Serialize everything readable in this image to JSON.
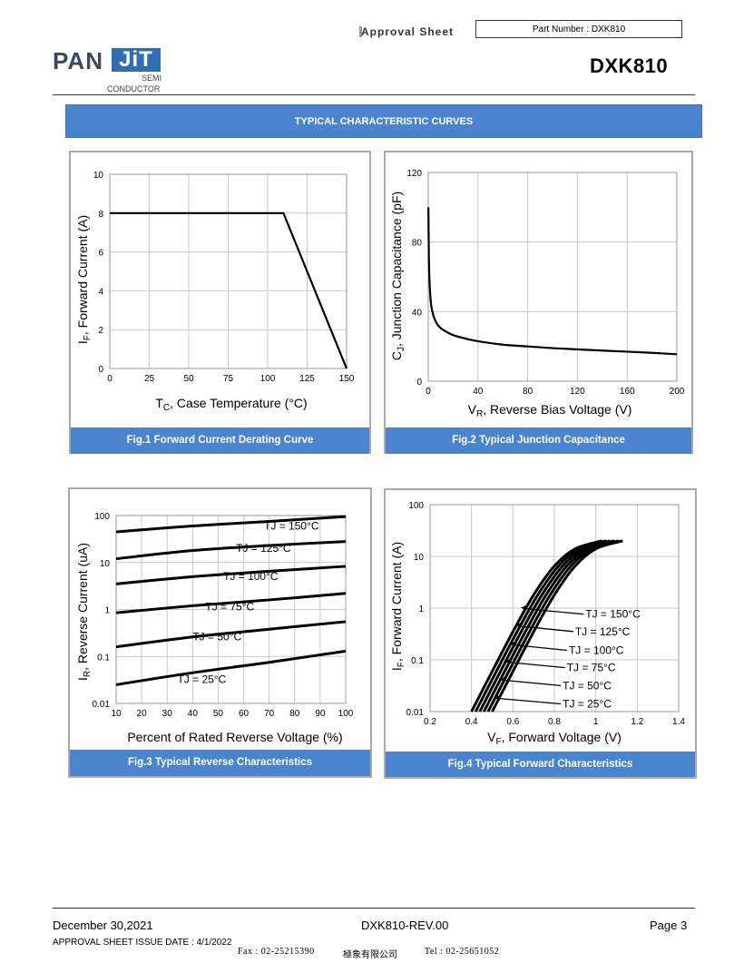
{
  "header": {
    "logo_pan": "PAN",
    "logo_jit": "JiT",
    "logo_semi": "SEMI",
    "logo_conductor": "CONDUCTOR",
    "approval": "Approval Sheet",
    "part_number": "Part Number : DXK810",
    "title": "DXK810"
  },
  "section_title": "TYPICAL CHARACTERISTIC CURVES",
  "colors": {
    "banner": "#4a84cf",
    "grid": "#c8c8c8",
    "curve": "#000000"
  },
  "figures": [
    {
      "caption": "Fig.1 Forward Current Derating Curve",
      "xlabel_main": "T",
      "xlabel_sub": "C",
      "xlabel_rest": ", Case Temperature (°C)",
      "ylabel_main": "I",
      "ylabel_sub": "F",
      "ylabel_rest": ", Forward Current (A)",
      "xticks": [
        "0",
        "25",
        "50",
        "75",
        "100",
        "125",
        "150"
      ],
      "yticks": [
        "0",
        "2",
        "4",
        "6",
        "8",
        "10"
      ]
    },
    {
      "caption": "Fig.2 Typical Junction Capacitance",
      "xlabel_main": "V",
      "xlabel_sub": "R",
      "xlabel_rest": ", Reverse Bias Voltage (V)",
      "ylabel_main": "C",
      "ylabel_sub": "J",
      "ylabel_rest": ", Junction Capacitance (pF)",
      "xticks": [
        "0",
        "40",
        "80",
        "120",
        "160",
        "200"
      ],
      "yticks": [
        "0",
        "40",
        "80",
        "120"
      ]
    },
    {
      "caption": "Fig.3 Typical Reverse Characteristics",
      "xlabel_main": "Percent of Rated Reverse Voltage (%)",
      "ylabel_main": "I",
      "ylabel_sub": "R",
      "ylabel_rest": ", Reverse Current (uA)",
      "xticks": [
        "10",
        "20",
        "30",
        "40",
        "50",
        "60",
        "70",
        "80",
        "90",
        "100"
      ],
      "yticks": [
        "0.01",
        "0.1",
        "1",
        "10",
        "100"
      ]
    },
    {
      "caption": "Fig.4 Typical Forward Characteristics",
      "xlabel_main": "V",
      "xlabel_sub": "F",
      "xlabel_rest": ", Forward Voltage (V)",
      "ylabel_main": "I",
      "ylabel_sub": "F",
      "ylabel_rest": ", Forward Current (A)",
      "xticks": [
        "0.2",
        "0.4",
        "0.6",
        "0.8",
        "1",
        "1.2",
        "1.4"
      ],
      "yticks": [
        "0.01",
        "0.1",
        "1",
        "10",
        "100"
      ]
    }
  ],
  "chart_data": [
    {
      "type": "line",
      "title": "Fig.1 Forward Current Derating Curve",
      "xlabel": "TC, Case Temperature (°C)",
      "ylabel": "IF, Forward Current (A)",
      "xlim": [
        0,
        150
      ],
      "ylim": [
        0,
        10
      ],
      "grid": true,
      "series": [
        {
          "x": [
            0,
            110,
            150
          ],
          "y": [
            8,
            8,
            0
          ]
        }
      ]
    },
    {
      "type": "line",
      "title": "Fig.2 Typical Junction Capacitance",
      "xlabel": "VR, Reverse Bias Voltage (V)",
      "ylabel": "CJ, Junction Capacitance (pF)",
      "xlim": [
        0,
        200
      ],
      "ylim": [
        0,
        120
      ],
      "grid": true,
      "series": [
        {
          "x": [
            0.1,
            0.5,
            1,
            2,
            3,
            5,
            8,
            12,
            20,
            30,
            40,
            60,
            80,
            100,
            120,
            140,
            160,
            180,
            200
          ],
          "y": [
            100,
            72,
            58,
            46,
            41,
            36,
            32,
            29.5,
            26.5,
            24.5,
            23,
            21,
            20,
            19,
            18.3,
            17.6,
            17,
            16.3,
            15.5
          ]
        }
      ]
    },
    {
      "type": "line",
      "title": "Fig.3 Typical Reverse Characteristics",
      "xlabel": "Percent of Rated Reverse Voltage (%)",
      "ylabel": "IR, Reverse Current (uA)",
      "xlim": [
        10,
        100
      ],
      "ylim": [
        0.01,
        100
      ],
      "yscale": "log",
      "grid": true,
      "series": [
        {
          "name": "TJ = 150°C",
          "label_x": 68,
          "label_y": 50,
          "x": [
            10,
            40,
            70,
            100
          ],
          "y": [
            45,
            60,
            75,
            95
          ]
        },
        {
          "name": "TJ = 125°C",
          "label_x": 57,
          "label_y": 17,
          "x": [
            10,
            40,
            70,
            100
          ],
          "y": [
            12,
            18,
            23,
            28
          ]
        },
        {
          "name": "TJ = 100°C",
          "label_x": 52,
          "label_y": 4.2,
          "x": [
            10,
            40,
            70,
            100
          ],
          "y": [
            3.5,
            5,
            6.5,
            8.3
          ]
        },
        {
          "name": "TJ = 75°C",
          "label_x": 45,
          "label_y": 0.95,
          "x": [
            10,
            40,
            70,
            100
          ],
          "y": [
            0.85,
            1.2,
            1.6,
            2.2
          ]
        },
        {
          "name": "TJ = 50°C",
          "label_x": 40,
          "label_y": 0.22,
          "x": [
            10,
            40,
            70,
            100
          ],
          "y": [
            0.16,
            0.26,
            0.38,
            0.55
          ]
        },
        {
          "name": "TJ = 25°C",
          "label_x": 34,
          "label_y": 0.027,
          "x": [
            10,
            40,
            70,
            100
          ],
          "y": [
            0.025,
            0.045,
            0.075,
            0.13
          ]
        }
      ]
    },
    {
      "type": "line",
      "title": "Fig.4 Typical Forward Characteristics",
      "xlabel": "VF, Forward Voltage (V)",
      "ylabel": "IF, Forward Current (A)",
      "xlim": [
        0.2,
        1.4
      ],
      "ylim": [
        0.01,
        100
      ],
      "yscale": "log",
      "grid": true,
      "series": [
        {
          "name": "TJ = 150°C",
          "label_x": 0.95,
          "label_y": 0.65,
          "x": [
            0.4,
            0.5,
            0.6,
            0.7,
            0.8,
            0.9,
            1.03
          ],
          "y": [
            0.01,
            0.06,
            0.35,
            1.8,
            6.5,
            14,
            20
          ]
        },
        {
          "name": "TJ = 125°C",
          "label_x": 0.9,
          "label_y": 0.3,
          "x": [
            0.42,
            0.52,
            0.62,
            0.72,
            0.82,
            0.92,
            1.05
          ],
          "y": [
            0.01,
            0.06,
            0.35,
            1.8,
            6.5,
            14,
            20
          ]
        },
        {
          "name": "TJ = 100°C",
          "label_x": 0.87,
          "label_y": 0.13,
          "x": [
            0.44,
            0.54,
            0.64,
            0.74,
            0.84,
            0.94,
            1.07
          ],
          "y": [
            0.01,
            0.06,
            0.35,
            1.8,
            6.5,
            14,
            20
          ]
        },
        {
          "name": "TJ = 75°C",
          "label_x": 0.86,
          "label_y": 0.06,
          "x": [
            0.46,
            0.56,
            0.66,
            0.76,
            0.86,
            0.96,
            1.09
          ],
          "y": [
            0.01,
            0.06,
            0.35,
            1.8,
            6.5,
            14,
            20
          ]
        },
        {
          "name": "TJ = 50°C",
          "label_x": 0.84,
          "label_y": 0.027,
          "x": [
            0.48,
            0.58,
            0.68,
            0.78,
            0.88,
            0.98,
            1.11
          ],
          "y": [
            0.01,
            0.06,
            0.35,
            1.8,
            6.5,
            14,
            20
          ]
        },
        {
          "name": "TJ = 25°C",
          "label_x": 0.84,
          "label_y": 0.012,
          "x": [
            0.5,
            0.6,
            0.7,
            0.8,
            0.9,
            1.0,
            1.13
          ],
          "y": [
            0.01,
            0.06,
            0.35,
            1.8,
            6.5,
            14,
            20
          ]
        }
      ]
    }
  ],
  "footer": {
    "date": "December 30,2021",
    "revision": "DXK810-REV.00",
    "page": "Page 3",
    "issue_date": "APPROVAL SHEET ISSUE DATE : 4/1/2022",
    "fax": "Fax : 02-25215390",
    "company": "極象有限公司",
    "tel": "Tel : 02-25651052"
  }
}
